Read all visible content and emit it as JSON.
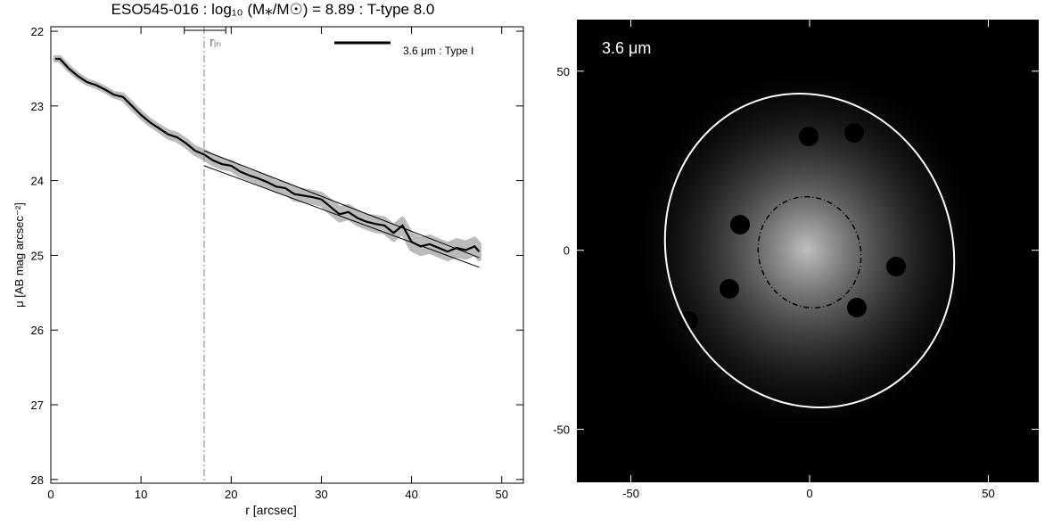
{
  "chart_data": [
    {
      "type": "line",
      "title": "ESO545-016 : log₁₀ (M⁎/M☉) = 8.89 : T-type 8.0",
      "x_label": "r [arcsec]",
      "y_label": "μ [AB mag arcsec⁻²]",
      "xlim": [
        0,
        52.4
      ],
      "ylim": [
        28.05,
        21.94
      ],
      "xticks": [
        0,
        10,
        20,
        30,
        40,
        50
      ],
      "yticks": [
        22,
        23,
        24,
        25,
        26,
        27,
        28
      ],
      "series": [
        {
          "name": "3.6 μm : Type I",
          "color": "#000000",
          "band_color": "#bbbbbb",
          "x": [
            0.5,
            1,
            2,
            3,
            4,
            5,
            6,
            7,
            8,
            9,
            10,
            11,
            12,
            13,
            14,
            15,
            16,
            17,
            18,
            19,
            20,
            21,
            22,
            23,
            24,
            25,
            26,
            27,
            28,
            29,
            30,
            31,
            32,
            33,
            34,
            35,
            36,
            37,
            38,
            39,
            40,
            41,
            42,
            43,
            44,
            45,
            46,
            47,
            47.5
          ],
          "values": [
            22.37,
            22.37,
            22.5,
            22.6,
            22.68,
            22.72,
            22.78,
            22.85,
            22.88,
            23.0,
            23.12,
            23.22,
            23.3,
            23.38,
            23.42,
            23.5,
            23.6,
            23.65,
            23.73,
            23.78,
            23.8,
            23.88,
            23.93,
            23.97,
            24.02,
            24.08,
            24.1,
            24.18,
            24.2,
            24.22,
            24.25,
            24.35,
            24.45,
            24.42,
            24.5,
            24.55,
            24.58,
            24.6,
            24.7,
            24.6,
            24.82,
            24.88,
            24.85,
            24.9,
            24.95,
            24.9,
            24.93,
            24.88,
            24.95
          ],
          "errors": [
            0.02,
            0.02,
            0.02,
            0.02,
            0.02,
            0.02,
            0.02,
            0.02,
            0.03,
            0.03,
            0.03,
            0.03,
            0.03,
            0.04,
            0.04,
            0.04,
            0.04,
            0.05,
            0.05,
            0.05,
            0.05,
            0.05,
            0.05,
            0.06,
            0.06,
            0.06,
            0.06,
            0.07,
            0.07,
            0.07,
            0.07,
            0.08,
            0.08,
            0.08,
            0.08,
            0.08,
            0.09,
            0.09,
            0.09,
            0.09,
            0.1,
            0.1,
            0.1,
            0.1,
            0.1,
            0.1,
            0.1,
            0.1,
            0.1
          ]
        }
      ],
      "fits": [
        {
          "x": [
            17,
            47.5
          ],
          "values": [
            23.6,
            25.03
          ]
        },
        {
          "x": [
            17,
            47.5
          ],
          "values": [
            23.8,
            25.16
          ]
        }
      ],
      "r_in": 17,
      "r_in_range": [
        14.8,
        19.4
      ],
      "r_in_label": "rᵢₙ"
    },
    {
      "type": "image",
      "label": "3.6 μm",
      "xlim": [
        -65.1,
        64.1
      ],
      "ylim": [
        -64.8,
        64.4
      ],
      "xticks": [
        -50,
        0,
        50
      ],
      "yticks": [
        -50,
        0,
        50
      ]
    }
  ]
}
